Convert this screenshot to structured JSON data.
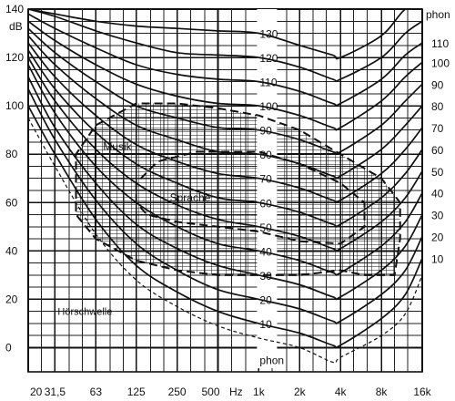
{
  "chart_data": {
    "type": "line",
    "ylabel": "dB",
    "xunit": "Hz",
    "curve_unit": "phon",
    "x_ticks": [
      "20",
      "31,5",
      "63",
      "125",
      "250",
      "500",
      "1k",
      "2k",
      "4k",
      "8k",
      "16k"
    ],
    "x_tick_values": [
      20,
      31.5,
      63,
      125,
      250,
      500,
      1000,
      2000,
      4000,
      8000,
      16000
    ],
    "y_ticks": [
      "140",
      "120",
      "100",
      "80",
      "60",
      "40",
      "20",
      "0"
    ],
    "y_tick_values": [
      140,
      120,
      100,
      80,
      60,
      40,
      20,
      0
    ],
    "ylim": [
      -10,
      140
    ],
    "xlim": [
      20,
      16000
    ],
    "x_scale": "log",
    "grid": true,
    "center_labels": [
      "130",
      "120",
      "110",
      "100",
      "90",
      "80",
      "70",
      "60",
      "50",
      "40",
      "30",
      "20",
      "10",
      "phon"
    ],
    "right_labels": [
      "phon",
      "110",
      "100",
      "90",
      "80",
      "70",
      "60",
      "50",
      "40",
      "30",
      "20",
      "10"
    ],
    "x": [
      20,
      31.5,
      63,
      125,
      250,
      500,
      1000,
      2000,
      3500,
      4000,
      8000,
      12000,
      16000
    ],
    "series": [
      {
        "phon": 130,
        "values": [
          140,
          138,
          135,
          133,
          132,
          131,
          130,
          125,
          121,
          120,
          129,
          140,
          141
        ]
      },
      {
        "phon": 120,
        "values": [
          140,
          137,
          131,
          126,
          122,
          121,
          120,
          116,
          111,
          111,
          120,
          130,
          135
        ]
      },
      {
        "phon": 110,
        "values": [
          138,
          132,
          124,
          117,
          113,
          111,
          110,
          106,
          101,
          101,
          111,
          121,
          126
        ]
      },
      {
        "phon": 100,
        "values": [
          135,
          127,
          117,
          109,
          104,
          101,
          100,
          96,
          91,
          91,
          102,
          112,
          118
        ]
      },
      {
        "phon": 90,
        "values": [
          132,
          122,
          110,
          100,
          95,
          91,
          90,
          86,
          81,
          81,
          92,
          102,
          109
        ]
      },
      {
        "phon": 80,
        "values": [
          129,
          117,
          103,
          92,
          86,
          81,
          80,
          76,
          71,
          71,
          82,
          92,
          100
        ]
      },
      {
        "phon": 70,
        "values": [
          126,
          112,
          96,
          84,
          77,
          72,
          70,
          66,
          61,
          61,
          72,
          82,
          91
        ]
      },
      {
        "phon": 60,
        "values": [
          123,
          107,
          89,
          76,
          68,
          62,
          60,
          56,
          51,
          51,
          62,
          72,
          82
        ]
      },
      {
        "phon": 50,
        "values": [
          120,
          102,
          82,
          68,
          59,
          53,
          50,
          46,
          41,
          41,
          52,
          62,
          73
        ]
      },
      {
        "phon": 40,
        "values": [
          117,
          97,
          75,
          60,
          50,
          43,
          40,
          36,
          31,
          31,
          42,
          52,
          64
        ]
      },
      {
        "phon": 30,
        "values": [
          112,
          91,
          68,
          51,
          41,
          34,
          30,
          26,
          21,
          21,
          32,
          42,
          55
        ]
      },
      {
        "phon": 20,
        "values": [
          107,
          86,
          61,
          43,
          32,
          24,
          20,
          16,
          11,
          11,
          22,
          32,
          46
        ]
      },
      {
        "phon": 10,
        "values": [
          100,
          80,
          53,
          34,
          23,
          15,
          10,
          6,
          1,
          1,
          12,
          22,
          37
        ]
      }
    ],
    "threshold": {
      "label": "Hörschwelle",
      "values": [
        95,
        75,
        47,
        28,
        17,
        9,
        4,
        0,
        -6,
        -4,
        5,
        14,
        30
      ]
    },
    "regions": [
      {
        "label": "Musik",
        "outline": [
          [
            45,
            63
          ],
          [
            45,
            80
          ],
          [
            63,
            92
          ],
          [
            125,
            101
          ],
          [
            250,
            101
          ],
          [
            500,
            99
          ],
          [
            1000,
            96
          ],
          [
            2000,
            90
          ],
          [
            4000,
            80
          ],
          [
            8000,
            70
          ],
          [
            11000,
            60
          ],
          [
            11000,
            45
          ],
          [
            10000,
            30
          ],
          [
            6000,
            30
          ],
          [
            4000,
            32
          ],
          [
            2000,
            30
          ],
          [
            1000,
            30
          ],
          [
            500,
            30
          ],
          [
            250,
            32
          ],
          [
            125,
            36
          ],
          [
            63,
            45
          ],
          [
            45,
            55
          ],
          [
            45,
            63
          ]
        ]
      },
      {
        "label": "Sprache",
        "outline": [
          [
            125,
            60
          ],
          [
            125,
            68
          ],
          [
            180,
            77
          ],
          [
            350,
            81
          ],
          [
            1000,
            81
          ],
          [
            2000,
            76
          ],
          [
            4000,
            68
          ],
          [
            6000,
            60
          ],
          [
            6000,
            50
          ],
          [
            4000,
            43
          ],
          [
            2000,
            44
          ],
          [
            1000,
            48
          ],
          [
            500,
            50
          ],
          [
            250,
            52
          ],
          [
            150,
            55
          ],
          [
            125,
            60
          ]
        ]
      }
    ]
  }
}
